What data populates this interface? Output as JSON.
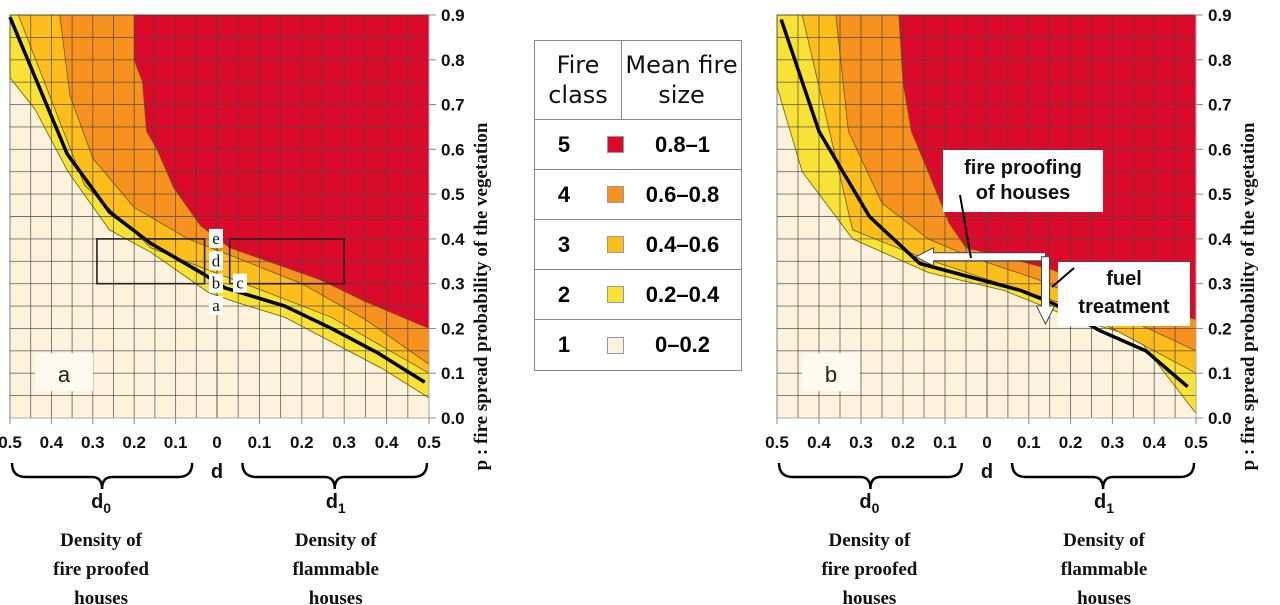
{
  "legend": {
    "header_class": "Fire class",
    "header_size": "Mean fire size",
    "rows": [
      {
        "class": "5",
        "range": "0.8–1",
        "color": "#dc0a2a"
      },
      {
        "class": "4",
        "range": "0.6–0.8",
        "color": "#f7921e"
      },
      {
        "class": "3",
        "range": "0.4–0.6",
        "color": "#fdbd1a"
      },
      {
        "class": "2",
        "range": "0.2–0.4",
        "color": "#f8e235"
      },
      {
        "class": "1",
        "range": "0–0.2",
        "color": "#fdf3dc"
      }
    ]
  },
  "chart_data": [
    {
      "type": "area",
      "panel_label": "a",
      "ylabel": "p : fire spread probability of the vegetation",
      "ylim": [
        0,
        0.9
      ],
      "yticks": [
        "0.0",
        "0.1",
        "0.2",
        "0.3",
        "0.4",
        "0.5",
        "0.6",
        "0.7",
        "0.8",
        "0.9"
      ],
      "xticks_d0": [
        "0.5",
        "0.4",
        "0.3",
        "0.2",
        "0.1"
      ],
      "xtick_center": "0",
      "xticks_d1": [
        "0.1",
        "0.2",
        "0.3",
        "0.4",
        "0.5"
      ],
      "xlabel_center": "d",
      "xlabel_d0": "d0",
      "xlabel_d1": "d1",
      "desc_d0": [
        "Density of",
        "fire proofed",
        "houses"
      ],
      "desc_d1": [
        "Density of",
        "flammable",
        "houses"
      ],
      "grid": true,
      "boundaries": {
        "class1_2": {
          "d0": [
            [
              0.5,
              0.76
            ],
            [
              0.44,
              0.69
            ],
            [
              0.36,
              0.55
            ],
            [
              0.26,
              0.42
            ],
            [
              0.16,
              0.37
            ],
            [
              0.02,
              0.28
            ]
          ],
          "d1": [
            [
              0.04,
              0.26
            ],
            [
              0.16,
              0.225
            ],
            [
              0.27,
              0.17
            ],
            [
              0.39,
              0.11
            ],
            [
              0.5,
              0.045
            ]
          ]
        },
        "class2_3": {
          "d0": [
            [
              0.48,
              0.9
            ],
            [
              0.32,
              0.52
            ],
            [
              0.16,
              0.38
            ],
            [
              0.02,
              0.33
            ]
          ],
          "d1": [
            [
              0.12,
              0.28
            ],
            [
              0.27,
              0.225
            ],
            [
              0.5,
              0.1
            ]
          ]
        },
        "class3_4": {
          "d0": [
            [
              0.38,
              0.9
            ],
            [
              0.355,
              0.72
            ],
            [
              0.3,
              0.58
            ],
            [
              0.2,
              0.47
            ],
            [
              0.07,
              0.4
            ]
          ],
          "d1": [
            [
              0.04,
              0.36
            ],
            [
              0.2,
              0.3
            ],
            [
              0.35,
              0.22
            ],
            [
              0.5,
              0.12
            ]
          ]
        },
        "class4_5": {
          "d0": [
            [
              0.2,
              0.9
            ],
            [
              0.2,
              0.8
            ],
            [
              0.18,
              0.75
            ],
            [
              0.17,
              0.64
            ],
            [
              0.145,
              0.6
            ],
            [
              0.105,
              0.515
            ],
            [
              0.04,
              0.43
            ]
          ],
          "d1": [
            [
              0.03,
              0.38
            ],
            [
              0.12,
              0.35
            ],
            [
              0.24,
              0.31
            ],
            [
              0.35,
              0.26
            ],
            [
              0.5,
              0.2
            ]
          ]
        }
      },
      "mean_curve": {
        "d0": [
          [
            0.5,
            0.895
          ],
          [
            0.362,
            0.59
          ],
          [
            0.26,
            0.46
          ],
          [
            0.16,
            0.39
          ],
          [
            0.03,
            0.32
          ]
        ],
        "d1": [
          [
            0.02,
            0.29
          ],
          [
            0.16,
            0.25
          ],
          [
            0.27,
            0.2
          ],
          [
            0.38,
            0.145
          ],
          [
            0.49,
            0.08
          ]
        ]
      },
      "boxes": [
        {
          "side": "d0",
          "d": [
            0.03,
            0.29
          ],
          "p": [
            0.3,
            0.4
          ]
        },
        {
          "side": "d1",
          "d": [
            0.03,
            0.3
          ],
          "p": [
            0.3,
            0.4
          ]
        }
      ],
      "point_labels": [
        {
          "text": "e",
          "p": 0.4
        },
        {
          "text": "d",
          "p": 0.35
        },
        {
          "text": "b",
          "p": 0.3
        },
        {
          "text": "c",
          "p": 0.3
        },
        {
          "text": "a",
          "p": 0.25
        }
      ]
    },
    {
      "type": "area",
      "panel_label": "b",
      "ylabel": "p : fire spread probability of the vegetation",
      "ylim": [
        0,
        0.9
      ],
      "yticks": [
        "0.0",
        "0.1",
        "0.2",
        "0.3",
        "0.4",
        "0.5",
        "0.6",
        "0.7",
        "0.8",
        "0.9"
      ],
      "xticks_d0": [
        "0.5",
        "0.4",
        "0.3",
        "0.2",
        "0.1"
      ],
      "xtick_center": "0",
      "xticks_d1": [
        "0.1",
        "0.2",
        "0.3",
        "0.4",
        "0.5"
      ],
      "xlabel_center": "d",
      "xlabel_d0": "d0",
      "xlabel_d1": "d1",
      "desc_d0": [
        "Density of",
        "fire proofed",
        "houses"
      ],
      "desc_d1": [
        "Density of",
        "flammable",
        "houses"
      ],
      "grid": true,
      "boundaries": {
        "class1_2": {
          "d0": [
            [
              0.5,
              0.74
            ],
            [
              0.44,
              0.55
            ],
            [
              0.32,
              0.4
            ],
            [
              0.14,
              0.325
            ]
          ],
          "d1": [
            [
              0.04,
              0.285
            ],
            [
              0.2,
              0.225
            ],
            [
              0.36,
              0.18
            ],
            [
              0.5,
              0.01
            ]
          ]
        },
        "class2_3": {
          "d0": [
            [
              0.44,
              0.9
            ],
            [
              0.32,
              0.42
            ],
            [
              0.16,
              0.36
            ],
            [
              0.0,
              0.31
            ]
          ],
          "d1": [
            [
              0.2,
              0.25
            ],
            [
              0.5,
              0.1
            ]
          ]
        },
        "class3_4": {
          "d0": [
            [
              0.36,
              0.9
            ],
            [
              0.33,
              0.64
            ],
            [
              0.25,
              0.48
            ],
            [
              0.14,
              0.4
            ],
            [
              0.04,
              0.36
            ]
          ],
          "d1": [
            [
              0.12,
              0.31
            ],
            [
              0.27,
              0.25
            ],
            [
              0.5,
              0.15
            ]
          ]
        },
        "class4_5": {
          "d0": [
            [
              0.21,
              0.9
            ],
            [
              0.2,
              0.75
            ],
            [
              0.18,
              0.64
            ],
            [
              0.14,
              0.55
            ],
            [
              0.09,
              0.435
            ],
            [
              0.05,
              0.38
            ]
          ],
          "d1": [
            [
              0.04,
              0.36
            ],
            [
              0.16,
              0.33
            ],
            [
              0.3,
              0.27
            ],
            [
              0.5,
              0.22
            ]
          ]
        }
      },
      "mean_curve": {
        "d0": [
          [
            0.49,
            0.89
          ],
          [
            0.4,
            0.64
          ],
          [
            0.28,
            0.45
          ],
          [
            0.16,
            0.345
          ],
          [
            0.04,
            0.315
          ]
        ],
        "d1": [
          [
            0.08,
            0.285
          ],
          [
            0.16,
            0.255
          ],
          [
            0.27,
            0.195
          ],
          [
            0.38,
            0.15
          ],
          [
            0.48,
            0.07
          ]
        ]
      },
      "annotations": {
        "fire_proofing": "fire proofing of houses",
        "fire_proofing_lines": [
          "fire proofing",
          "of houses"
        ],
        "fuel_treatment_lines": [
          "fuel",
          "treatment"
        ]
      },
      "arrows": [
        {
          "label": "fire proofing of houses",
          "from": {
            "side": "d1",
            "d": 0.14,
            "p": 0.36
          },
          "to": {
            "side": "d0",
            "d": 0.17,
            "p": 0.36
          }
        },
        {
          "label": "fuel treatment",
          "from": {
            "side": "d1",
            "d": 0.14,
            "p": 0.36
          },
          "to": {
            "side": "d1",
            "d": 0.14,
            "p": 0.21
          }
        }
      ]
    }
  ]
}
